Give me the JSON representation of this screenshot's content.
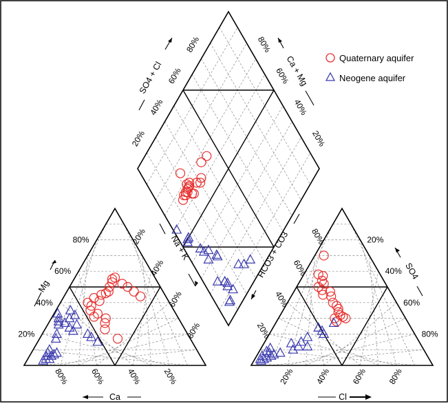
{
  "legend": {
    "items": [
      {
        "label": "Quaternary aquifer",
        "marker": "circle",
        "color": "#e8312f"
      },
      {
        "label": "Neogene aquifer",
        "marker": "triangle",
        "color": "#3b3bb0"
      }
    ]
  },
  "axes": {
    "cation_left": {
      "label": "Mg",
      "ticks": [
        "20%",
        "40%",
        "60%",
        "80%"
      ]
    },
    "cation_bottom": {
      "label": "Ca",
      "ticks": [
        "80%",
        "60%",
        "40%",
        "20%"
      ]
    },
    "cation_right": {
      "label": "Na + K",
      "ticks": [
        "20%",
        "40%",
        "60%",
        "80%"
      ]
    },
    "anion_left": {
      "label": "HCO3 + CO3",
      "ticks": [
        "80%",
        "60%",
        "40%",
        "20%"
      ]
    },
    "anion_right": {
      "label": "SO4",
      "ticks": [
        "80%",
        "60%",
        "40%",
        "20%"
      ]
    },
    "anion_bottom": {
      "label": "Cl",
      "ticks": [
        "20%",
        "40%",
        "60%",
        "80%"
      ]
    },
    "diamond_upper_left": {
      "label": "SO4 + Cl",
      "ticks": [
        "20%",
        "40%",
        "60%",
        "80%"
      ]
    },
    "diamond_upper_right": {
      "label": "Ca + Mg",
      "ticks": [
        "80%",
        "60%",
        "40%",
        "20%"
      ]
    }
  },
  "colors": {
    "quaternary": "#e8312f",
    "neogene": "#3b3bb0",
    "grid": "#8a8a8a"
  },
  "chart_data": {
    "type": "scatter",
    "diagram": "piper",
    "series": [
      {
        "name": "Quaternary aquifer",
        "cations": [
          {
            "ca": 32,
            "mg": 46
          },
          {
            "ca": 30,
            "mg": 47
          },
          {
            "ca": 28,
            "mg": 50
          },
          {
            "ca": 25,
            "mg": 53
          },
          {
            "ca": 24,
            "mg": 55
          },
          {
            "ca": 22,
            "mg": 56
          },
          {
            "ca": 20,
            "mg": 52
          },
          {
            "ca": 18,
            "mg": 50
          },
          {
            "ca": 16,
            "mg": 47
          },
          {
            "ca": 14,
            "mg": 44
          },
          {
            "ca": 35,
            "mg": 45
          },
          {
            "ca": 38,
            "mg": 41
          },
          {
            "ca": 40,
            "mg": 43
          },
          {
            "ca": 45,
            "mg": 40
          },
          {
            "ca": 44,
            "mg": 38
          },
          {
            "ca": 46,
            "mg": 35
          },
          {
            "ca": 43,
            "mg": 33
          },
          {
            "ca": 46,
            "mg": 31
          },
          {
            "ca": 40,
            "mg": 30
          },
          {
            "ca": 42,
            "mg": 27
          },
          {
            "ca": 44,
            "mg": 23
          },
          {
            "ca": 40,
            "mg": 17
          }
        ],
        "anions": [
          {
            "so4": 70,
            "cl": 5
          },
          {
            "so4": 58,
            "cl": 8
          },
          {
            "so4": 57,
            "cl": 11
          },
          {
            "so4": 54,
            "cl": 12
          },
          {
            "so4": 52,
            "cl": 14
          },
          {
            "so4": 50,
            "cl": 12
          },
          {
            "so4": 48,
            "cl": 15
          },
          {
            "so4": 45,
            "cl": 17
          },
          {
            "so4": 47,
            "cl": 20
          },
          {
            "so4": 44,
            "cl": 22
          },
          {
            "so4": 40,
            "cl": 25
          },
          {
            "so4": 38,
            "cl": 28
          },
          {
            "so4": 36,
            "cl": 30
          },
          {
            "so4": 34,
            "cl": 31
          },
          {
            "so4": 32,
            "cl": 33
          },
          {
            "so4": 31,
            "cl": 35
          },
          {
            "so4": 30,
            "cl": 37
          },
          {
            "so4": 28,
            "cl": 33
          },
          {
            "so4": 30,
            "cl": 31
          }
        ]
      },
      {
        "name": "Neogene aquifer",
        "cations": [
          {
            "ca": 65,
            "mg": 33
          },
          {
            "ca": 66,
            "mg": 30
          },
          {
            "ca": 67,
            "mg": 28
          },
          {
            "ca": 68,
            "mg": 26
          },
          {
            "ca": 64,
            "mg": 27
          },
          {
            "ca": 63,
            "mg": 24
          },
          {
            "ca": 62,
            "mg": 22
          },
          {
            "ca": 60,
            "mg": 30
          },
          {
            "ca": 58,
            "mg": 26
          },
          {
            "ca": 57,
            "mg": 35
          },
          {
            "ca": 56,
            "mg": 32
          },
          {
            "ca": 55,
            "mg": 20
          },
          {
            "ca": 54,
            "mg": 18
          },
          {
            "ca": 52,
            "mg": 15
          },
          {
            "ca": 72,
            "mg": 20
          },
          {
            "ca": 74,
            "mg": 17
          },
          {
            "ca": 78,
            "mg": 8
          },
          {
            "ca": 80,
            "mg": 7
          },
          {
            "ca": 82,
            "mg": 6
          },
          {
            "ca": 84,
            "mg": 4
          },
          {
            "ca": 86,
            "mg": 4
          },
          {
            "ca": 88,
            "mg": 3
          },
          {
            "ca": 85,
            "mg": 6
          },
          {
            "ca": 83,
            "mg": 8
          },
          {
            "ca": 81,
            "mg": 10
          }
        ],
        "anions": [
          {
            "so4": 27,
            "cl": 32
          },
          {
            "so4": 24,
            "cl": 25
          },
          {
            "so4": 22,
            "cl": 28
          },
          {
            "so4": 20,
            "cl": 30
          },
          {
            "so4": 18,
            "cl": 22
          },
          {
            "so4": 15,
            "cl": 20
          },
          {
            "so4": 14,
            "cl": 15
          },
          {
            "so4": 12,
            "cl": 25
          },
          {
            "so4": 10,
            "cl": 18
          },
          {
            "so4": 8,
            "cl": 12
          },
          {
            "so4": 7,
            "cl": 9
          },
          {
            "so4": 6,
            "cl": 8
          },
          {
            "so4": 5,
            "cl": 6
          },
          {
            "so4": 4,
            "cl": 5
          },
          {
            "so4": 3,
            "cl": 4
          },
          {
            "so4": 4,
            "cl": 3
          },
          {
            "so4": 6,
            "cl": 3
          },
          {
            "so4": 8,
            "cl": 6
          },
          {
            "so4": 9,
            "cl": 4
          },
          {
            "so4": 11,
            "cl": 5
          },
          {
            "so4": 12,
            "cl": 20
          }
        ]
      }
    ]
  }
}
